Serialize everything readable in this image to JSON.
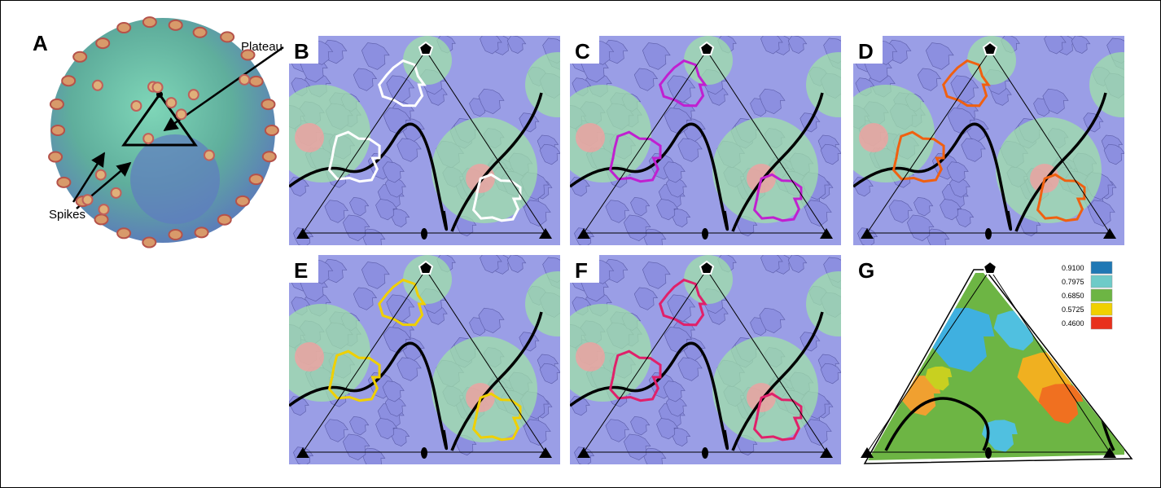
{
  "panels": [
    "A",
    "B",
    "C",
    "D",
    "E",
    "F",
    "G"
  ],
  "annotations": {
    "plateau": "Plateau",
    "spikes": "Spikes"
  },
  "legend": [
    "0.9100",
    "0.7975",
    "0.6850",
    "0.5725",
    "0.4600"
  ]
}
